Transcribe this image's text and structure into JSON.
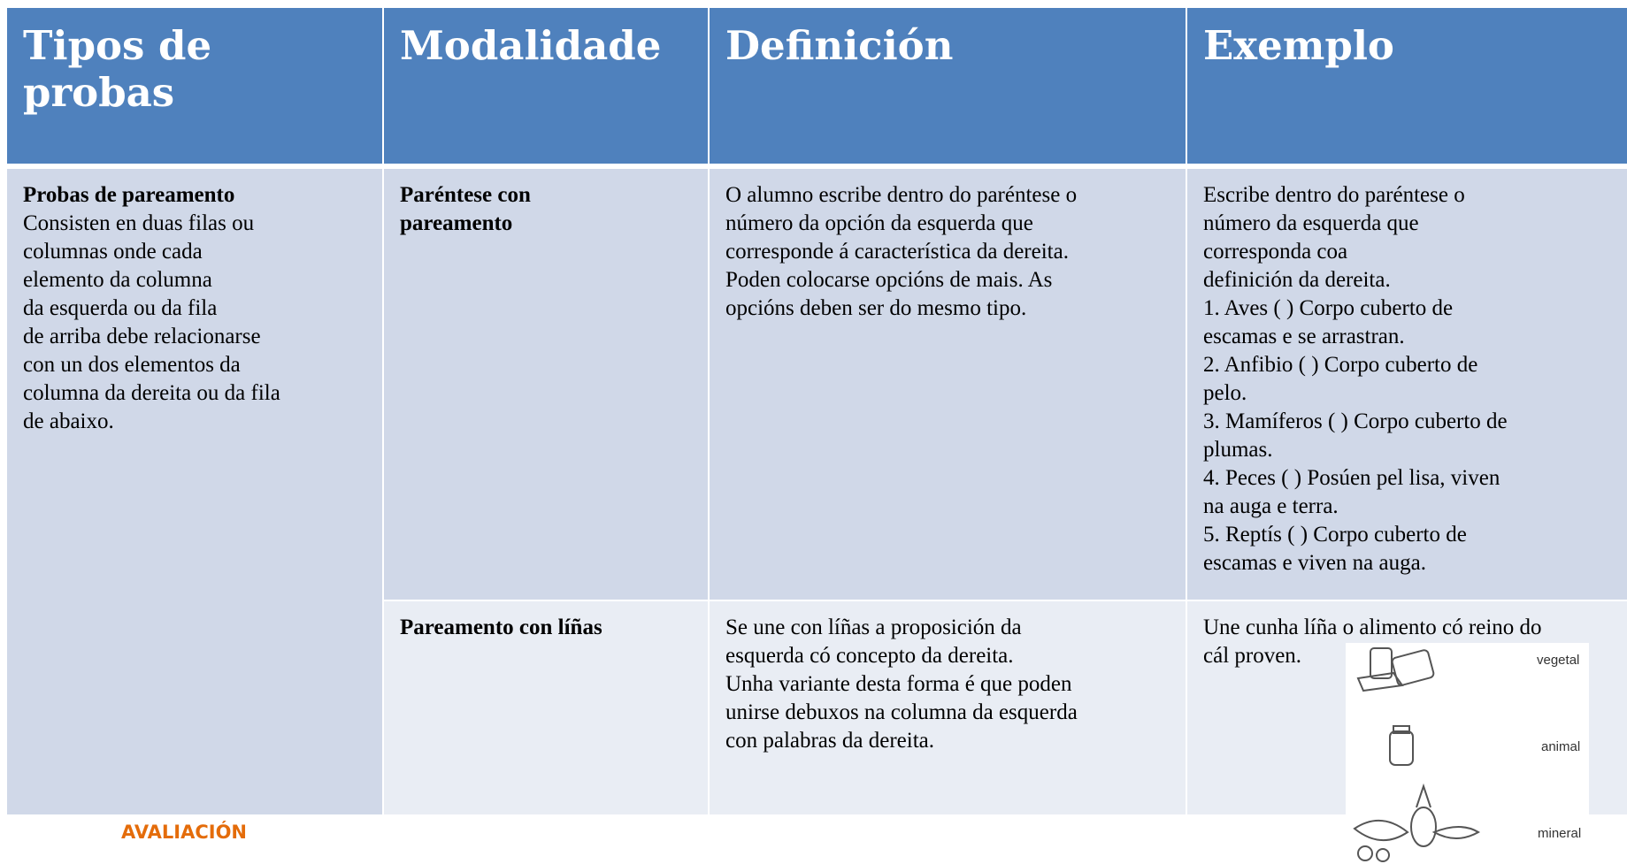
{
  "header": {
    "columns": [
      "Tipos de probas",
      "Modalidade",
      "Definición",
      "Exemplo"
    ]
  },
  "table": {
    "rows": [
      {
        "type": {
          "title": "Probas de pareamento",
          "lines": [
            "Consisten en duas filas ou",
            "columnas onde cada",
            "elemento da columna",
            "da esquerda ou da fila",
            "de arriba debe relacionarse",
            "con un dos elementos da",
            "columna da dereita ou da fila",
            "de abaixo."
          ]
        },
        "modality": [
          "Paréntese con",
          "pareamento"
        ],
        "definition": [
          "O alumno escribe dentro do paréntese o",
          "número da opción da esquerda que",
          "corresponde á característica da dereita.",
          "Poden colocarse opcións de mais. As",
          "opcións deben ser do mesmo tipo."
        ],
        "example": [
          "Escribe dentro do paréntese o",
          "número da esquerda que",
          "corresponda coa",
          "definición da dereita.",
          "1. Aves ( ) Corpo cuberto de",
          "escamas e se arrastran.",
          "2. Anfibio ( ) Corpo cuberto de",
          "pelo.",
          "3. Mamíferos ( ) Corpo cuberto de",
          "plumas.",
          "4. Peces ( ) Posúen pel lisa, viven",
          "na auga e terra.",
          "5. Reptís ( ) Corpo cuberto de",
          "escamas e viven na auga."
        ]
      },
      {
        "modality": [
          "Pareamento con líñas"
        ],
        "definition": [
          "Se une con líñas a proposición da",
          "esquerda có concepto da dereita.",
          "Unha variante desta forma é que poden",
          "unirse debuxos na columna da esquerda",
          "con palabras da dereita."
        ],
        "example": [
          "Une cunha líña o alimento có reino do",
          "cál proven."
        ],
        "image_labels": [
          "vegetal",
          "animal",
          "mineral"
        ]
      }
    ]
  },
  "footer": {
    "label": "AVALIACIÓN"
  }
}
